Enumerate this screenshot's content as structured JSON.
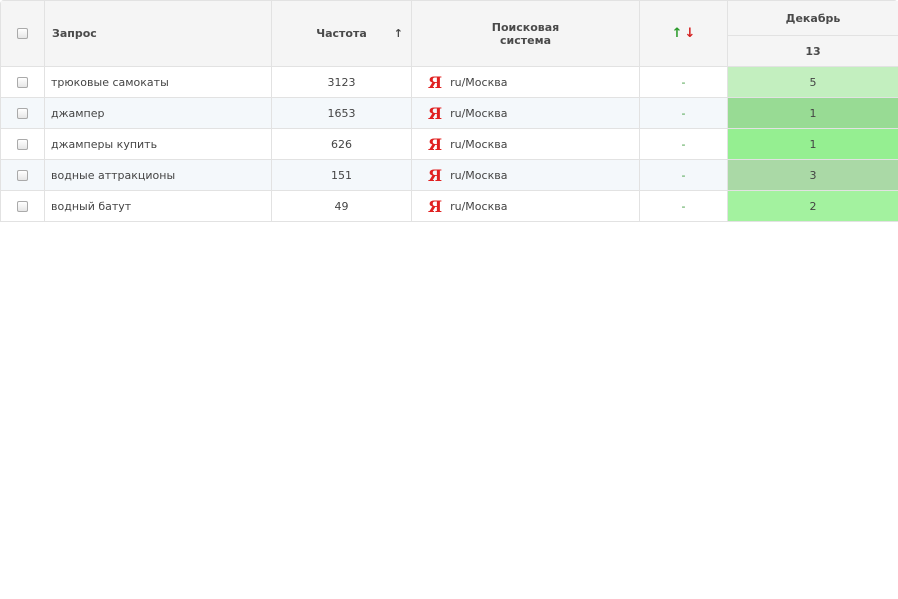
{
  "header": {
    "query": "Запрос",
    "frequency": "Частота",
    "sort_arrow": "↑",
    "engine": "Поисковая система",
    "change_up": "↑",
    "change_down": "↓",
    "month": "Декабрь",
    "day": "13"
  },
  "table": {
    "rows": [
      {
        "query": "трюковые самокаты",
        "frequency": "3123",
        "engine_icon": "Я",
        "region": "ru/Москва",
        "change": "-",
        "position": "5",
        "color": "#c3efbf"
      },
      {
        "query": "джампер",
        "frequency": "1653",
        "engine_icon": "Я",
        "region": "ru/Москва",
        "change": "-",
        "position": "1",
        "color": "#98db94"
      },
      {
        "query": "джамперы купить",
        "frequency": "626",
        "engine_icon": "Я",
        "region": "ru/Москва",
        "change": "-",
        "position": "1",
        "color": "#95ef91"
      },
      {
        "query": "водные аттракционы",
        "frequency": "151",
        "engine_icon": "Я",
        "region": "ru/Москва",
        "change": "-",
        "position": "3",
        "color": "#aad9a6"
      },
      {
        "query": "водный батут",
        "frequency": "49",
        "engine_icon": "Я",
        "region": "ru/Москва",
        "change": "-",
        "position": "2",
        "color": "#a3f29f"
      }
    ]
  }
}
